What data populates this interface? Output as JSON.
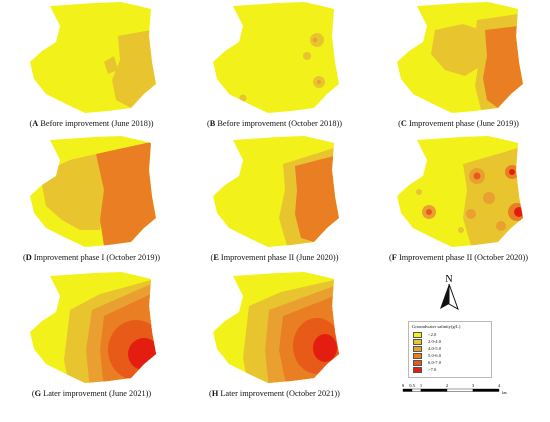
{
  "panels": [
    {
      "letter": "A",
      "text": " Before improvement (June 2018)"
    },
    {
      "letter": "B",
      "text": " Before improvement (October 2018)"
    },
    {
      "letter": "C",
      "text": " Improvement phase (June 2019)"
    },
    {
      "letter": "D",
      "text": " Improvement phase I (October 2019)"
    },
    {
      "letter": "E",
      "text": " Improvement phase II (June 2020)"
    },
    {
      "letter": "F",
      "text": " Improvement phase II (October 2020)"
    },
    {
      "letter": "G",
      "text": " Later improvement (June 2021)"
    },
    {
      "letter": "H",
      "text": " Later improvement (October 2021)"
    }
  ],
  "north_label": "N",
  "legend": {
    "title": "Groundwater salinity(g/L)",
    "classes": [
      {
        "label": "<2.0",
        "color": "#f2f21a"
      },
      {
        "label": "2.0-4.0",
        "color": "#e8c42e"
      },
      {
        "label": "4.0-5.0",
        "color": "#eaa030"
      },
      {
        "label": "5.0-6.0",
        "color": "#ea7e22"
      },
      {
        "label": "6.0-7.0",
        "color": "#e85a18"
      },
      {
        "label": ">7.0",
        "color": "#e31e10"
      }
    ]
  },
  "scale": {
    "ticks": [
      "0",
      "0.5",
      "1",
      "2",
      "3",
      "4"
    ],
    "unit": "km"
  },
  "colors": {
    "base": "#f2f21a",
    "class2": "#e8c42e",
    "class3": "#eaa030",
    "class4": "#ea7e22",
    "class5": "#e85a18",
    "class6": "#e31e10"
  }
}
